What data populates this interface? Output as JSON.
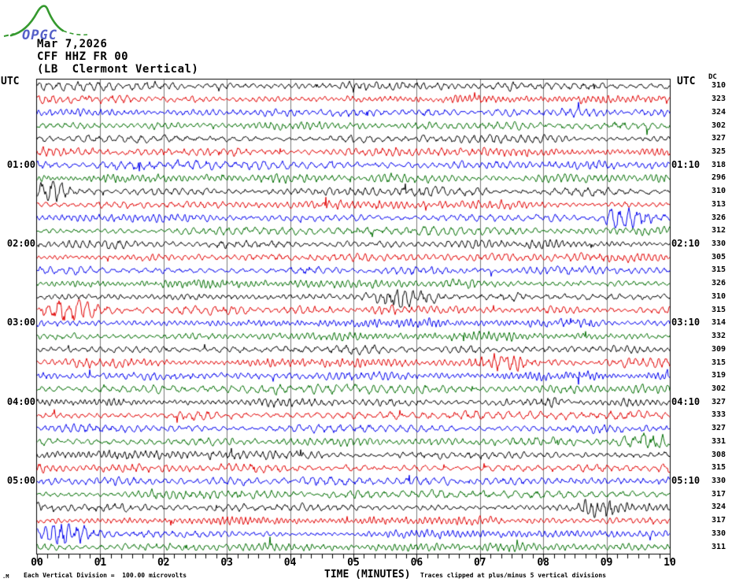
{
  "logo": {
    "text": "OPGC",
    "curve_color": "#35992e",
    "text_color": "#5560c8"
  },
  "header": {
    "date": "Mar 7,2026",
    "station": "CFF HHZ FR 00",
    "description": "(LB  Clermont Vertical)"
  },
  "axis_corner_labels": {
    "left_utc": "UTC",
    "right_utc": "UTC",
    "dc_header": "DC"
  },
  "footer": {
    "corner_mark": ".M",
    "scale_note": "Each Vertical Division =  100.00 microvolts",
    "axis_title": "TIME (MINUTES)",
    "clip_note": "Traces clipped at plus/minus 5 vertical divisions"
  },
  "chart_data": {
    "type": "line",
    "description": "Helicorder seismogram: 36 traces of 10 minutes each covering 00:00-06:00 UTC, colors cycling black/red/blue/green, DC offset listed per trace on the right",
    "x_axis": {
      "label": "TIME (MINUTES)",
      "ticks": [
        "00",
        "01",
        "02",
        "03",
        "04",
        "05",
        "06",
        "07",
        "08",
        "09",
        "10"
      ],
      "minor_ticks_per_major": 6,
      "range_minutes": [
        0,
        10
      ]
    },
    "grid_color": "#7a7a7a",
    "trace_colors_cycle": [
      "#000000",
      "#e10000",
      "#0000ee",
      "#006e00"
    ],
    "rows": [
      {
        "start": "00:00",
        "dc": 310,
        "left_label": "",
        "right_label": ""
      },
      {
        "start": "00:10",
        "dc": 323,
        "left_label": "",
        "right_label": ""
      },
      {
        "start": "00:20",
        "dc": 324,
        "left_label": "",
        "right_label": ""
      },
      {
        "start": "00:30",
        "dc": 302,
        "left_label": "",
        "right_label": ""
      },
      {
        "start": "00:40",
        "dc": 327,
        "left_label": "",
        "right_label": ""
      },
      {
        "start": "00:50",
        "dc": 325,
        "left_label": "",
        "right_label": ""
      },
      {
        "start": "01:00",
        "dc": 318,
        "left_label": "01:00",
        "right_label": "01:10"
      },
      {
        "start": "01:10",
        "dc": 296,
        "left_label": "",
        "right_label": ""
      },
      {
        "start": "01:20",
        "dc": 310,
        "left_label": "",
        "right_label": ""
      },
      {
        "start": "01:30",
        "dc": 313,
        "left_label": "",
        "right_label": ""
      },
      {
        "start": "01:40",
        "dc": 326,
        "left_label": "",
        "right_label": ""
      },
      {
        "start": "01:50",
        "dc": 312,
        "left_label": "",
        "right_label": ""
      },
      {
        "start": "02:00",
        "dc": 330,
        "left_label": "02:00",
        "right_label": "02:10"
      },
      {
        "start": "02:10",
        "dc": 305,
        "left_label": "",
        "right_label": ""
      },
      {
        "start": "02:20",
        "dc": 315,
        "left_label": "",
        "right_label": ""
      },
      {
        "start": "02:30",
        "dc": 326,
        "left_label": "",
        "right_label": ""
      },
      {
        "start": "02:40",
        "dc": 310,
        "left_label": "",
        "right_label": ""
      },
      {
        "start": "02:50",
        "dc": 315,
        "left_label": "",
        "right_label": ""
      },
      {
        "start": "03:00",
        "dc": 314,
        "left_label": "03:00",
        "right_label": "03:10"
      },
      {
        "start": "03:10",
        "dc": 332,
        "left_label": "",
        "right_label": ""
      },
      {
        "start": "03:20",
        "dc": 309,
        "left_label": "",
        "right_label": ""
      },
      {
        "start": "03:30",
        "dc": 315,
        "left_label": "",
        "right_label": ""
      },
      {
        "start": "03:40",
        "dc": 319,
        "left_label": "",
        "right_label": ""
      },
      {
        "start": "03:50",
        "dc": 302,
        "left_label": "",
        "right_label": ""
      },
      {
        "start": "04:00",
        "dc": 327,
        "left_label": "04:00",
        "right_label": "04:10"
      },
      {
        "start": "04:10",
        "dc": 333,
        "left_label": "",
        "right_label": ""
      },
      {
        "start": "04:20",
        "dc": 327,
        "left_label": "",
        "right_label": ""
      },
      {
        "start": "04:30",
        "dc": 331,
        "left_label": "",
        "right_label": ""
      },
      {
        "start": "04:40",
        "dc": 308,
        "left_label": "",
        "right_label": ""
      },
      {
        "start": "04:50",
        "dc": 315,
        "left_label": "",
        "right_label": ""
      },
      {
        "start": "05:00",
        "dc": 330,
        "left_label": "05:00",
        "right_label": "05:10"
      },
      {
        "start": "05:10",
        "dc": 317,
        "left_label": "",
        "right_label": ""
      },
      {
        "start": "05:20",
        "dc": 324,
        "left_label": "",
        "right_label": ""
      },
      {
        "start": "05:30",
        "dc": 317,
        "left_label": "",
        "right_label": ""
      },
      {
        "start": "05:40",
        "dc": 330,
        "left_label": "",
        "right_label": ""
      },
      {
        "start": "05:50",
        "dc": 311,
        "left_label": "",
        "right_label": ""
      }
    ],
    "bursts": [
      {
        "row": 8,
        "minute": 0.1,
        "strength": 2.4
      },
      {
        "row": 10,
        "minute": 9.3,
        "strength": 1.8
      },
      {
        "row": 16,
        "minute": 5.75,
        "strength": 1.8
      },
      {
        "row": 17,
        "minute": 0.55,
        "strength": 2.4
      },
      {
        "row": 21,
        "minute": 7.3,
        "strength": 1.7
      },
      {
        "row": 27,
        "minute": 9.6,
        "strength": 1.5
      },
      {
        "row": 32,
        "minute": 8.9,
        "strength": 2.0
      },
      {
        "row": 34,
        "minute": 0.45,
        "strength": 2.2
      }
    ]
  }
}
